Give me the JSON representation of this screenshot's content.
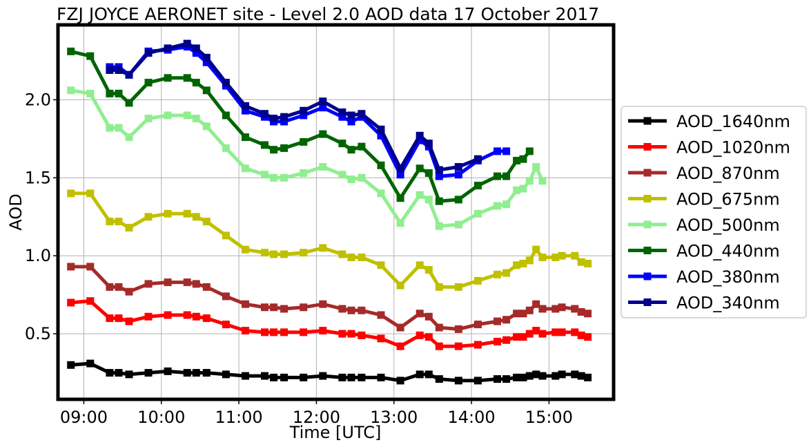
{
  "chart_data": {
    "type": "line",
    "title": "FZJ JOYCE AERONET site - Level 2.0 AOD data 17 October 2017",
    "xlabel": "Time [UTC]",
    "ylabel": "AOD",
    "xlim": [
      "08:40",
      "15:50"
    ],
    "ylim": [
      0.08,
      2.48
    ],
    "x_ticks": [
      "09:00",
      "10:00",
      "11:00",
      "12:00",
      "13:00",
      "14:00",
      "15:00"
    ],
    "y_ticks": [
      "0.5",
      "1.0",
      "1.5",
      "2.0"
    ],
    "grid": true,
    "legend_position": "right",
    "series": [
      {
        "name": "AOD_1640nm",
        "color": "#000000",
        "x": [
          "08:50",
          "09:05",
          "09:20",
          "09:27",
          "09:35",
          "09:50",
          "10:05",
          "10:20",
          "10:27",
          "10:35",
          "10:50",
          "11:05",
          "11:20",
          "11:27",
          "11:35",
          "11:50",
          "12:05",
          "12:20",
          "12:27",
          "12:35",
          "12:50",
          "13:05",
          "13:20",
          "13:27",
          "13:35",
          "13:50",
          "14:05",
          "14:20",
          "14:27",
          "14:35",
          "14:40",
          "14:45",
          "14:50",
          "14:55",
          "15:05",
          "15:10",
          "15:20",
          "15:25",
          "15:30"
        ],
        "y": [
          0.3,
          0.31,
          0.25,
          0.25,
          0.24,
          0.25,
          0.26,
          0.25,
          0.25,
          0.25,
          0.24,
          0.23,
          0.23,
          0.22,
          0.22,
          0.22,
          0.23,
          0.22,
          0.22,
          0.22,
          0.22,
          0.2,
          0.24,
          0.24,
          0.21,
          0.2,
          0.2,
          0.21,
          0.21,
          0.22,
          0.22,
          0.23,
          0.24,
          0.23,
          0.23,
          0.24,
          0.24,
          0.23,
          0.22
        ]
      },
      {
        "name": "AOD_1020nm",
        "color": "#ff0000",
        "x": [
          "08:50",
          "09:05",
          "09:20",
          "09:27",
          "09:35",
          "09:50",
          "10:05",
          "10:20",
          "10:27",
          "10:35",
          "10:50",
          "11:05",
          "11:20",
          "11:27",
          "11:35",
          "11:50",
          "12:05",
          "12:20",
          "12:27",
          "12:35",
          "12:50",
          "13:05",
          "13:20",
          "13:27",
          "13:35",
          "13:50",
          "14:05",
          "14:20",
          "14:27",
          "14:35",
          "14:40",
          "14:45",
          "14:50",
          "14:55",
          "15:05",
          "15:10",
          "15:20",
          "15:25",
          "15:30"
        ],
        "y": [
          0.7,
          0.71,
          0.6,
          0.6,
          0.58,
          0.61,
          0.62,
          0.62,
          0.61,
          0.6,
          0.56,
          0.52,
          0.51,
          0.51,
          0.51,
          0.51,
          0.52,
          0.5,
          0.5,
          0.49,
          0.47,
          0.42,
          0.49,
          0.48,
          0.42,
          0.42,
          0.43,
          0.45,
          0.46,
          0.48,
          0.48,
          0.5,
          0.52,
          0.5,
          0.51,
          0.51,
          0.51,
          0.49,
          0.48
        ]
      },
      {
        "name": "AOD_870nm",
        "color": "#a52a2a",
        "x": [
          "08:50",
          "09:05",
          "09:20",
          "09:27",
          "09:35",
          "09:50",
          "10:05",
          "10:20",
          "10:27",
          "10:35",
          "10:50",
          "11:05",
          "11:20",
          "11:27",
          "11:35",
          "11:50",
          "12:05",
          "12:20",
          "12:27",
          "12:35",
          "12:50",
          "13:05",
          "13:20",
          "13:27",
          "13:35",
          "13:50",
          "14:05",
          "14:20",
          "14:27",
          "14:35",
          "14:40",
          "14:45",
          "14:50",
          "14:55",
          "15:05",
          "15:10",
          "15:20",
          "15:25",
          "15:30"
        ],
        "y": [
          0.93,
          0.93,
          0.8,
          0.8,
          0.77,
          0.82,
          0.83,
          0.83,
          0.82,
          0.8,
          0.74,
          0.69,
          0.67,
          0.67,
          0.66,
          0.67,
          0.69,
          0.66,
          0.65,
          0.65,
          0.62,
          0.54,
          0.63,
          0.61,
          0.54,
          0.53,
          0.56,
          0.58,
          0.59,
          0.63,
          0.63,
          0.65,
          0.69,
          0.66,
          0.66,
          0.67,
          0.66,
          0.64,
          0.63
        ]
      },
      {
        "name": "AOD_675nm",
        "color": "#c0c000",
        "x": [
          "08:50",
          "09:05",
          "09:20",
          "09:27",
          "09:35",
          "09:50",
          "10:05",
          "10:20",
          "10:27",
          "10:35",
          "10:50",
          "11:05",
          "11:20",
          "11:27",
          "11:35",
          "11:50",
          "12:05",
          "12:20",
          "12:27",
          "12:35",
          "12:50",
          "13:05",
          "13:20",
          "13:27",
          "13:35",
          "13:50",
          "14:05",
          "14:20",
          "14:27",
          "14:35",
          "14:40",
          "14:45",
          "14:50",
          "14:55",
          "15:05",
          "15:10",
          "15:20",
          "15:25",
          "15:30"
        ],
        "y": [
          1.4,
          1.4,
          1.22,
          1.22,
          1.18,
          1.25,
          1.27,
          1.27,
          1.25,
          1.22,
          1.13,
          1.04,
          1.02,
          1.01,
          1.01,
          1.02,
          1.05,
          1.01,
          0.99,
          0.99,
          0.94,
          0.81,
          0.94,
          0.91,
          0.8,
          0.8,
          0.84,
          0.88,
          0.89,
          0.94,
          0.95,
          0.97,
          1.04,
          0.99,
          0.99,
          1.0,
          1.0,
          0.96,
          0.95
        ]
      },
      {
        "name": "AOD_500nm",
        "color": "#90ee90",
        "x": [
          "08:50",
          "09:05",
          "09:20",
          "09:27",
          "09:35",
          "09:50",
          "10:05",
          "10:20",
          "10:27",
          "10:35",
          "10:50",
          "11:05",
          "11:20",
          "11:27",
          "11:35",
          "11:50",
          "12:05",
          "12:20",
          "12:27",
          "12:35",
          "12:50",
          "13:05",
          "13:20",
          "13:27",
          "13:35",
          "13:50",
          "14:05",
          "14:20",
          "14:27",
          "14:35",
          "14:40",
          "14:45",
          "14:50",
          "14:55"
        ],
        "y": [
          2.06,
          2.04,
          1.82,
          1.82,
          1.76,
          1.88,
          1.9,
          1.9,
          1.88,
          1.83,
          1.69,
          1.56,
          1.52,
          1.5,
          1.5,
          1.53,
          1.57,
          1.52,
          1.49,
          1.5,
          1.4,
          1.21,
          1.39,
          1.36,
          1.19,
          1.2,
          1.27,
          1.32,
          1.33,
          1.42,
          1.43,
          1.48,
          1.57,
          1.48
        ]
      },
      {
        "name": "AOD_440nm",
        "color": "#006400",
        "x": [
          "08:50",
          "09:05",
          "09:20",
          "09:27",
          "09:35",
          "09:50",
          "10:05",
          "10:20",
          "10:27",
          "10:35",
          "10:50",
          "11:05",
          "11:20",
          "11:27",
          "11:35",
          "11:50",
          "12:05",
          "12:20",
          "12:27",
          "12:35",
          "12:50",
          "13:05",
          "13:20",
          "13:27",
          "13:35",
          "13:50",
          "14:05",
          "14:20",
          "14:27",
          "14:35",
          "14:40",
          "14:45"
        ],
        "y": [
          2.31,
          2.28,
          2.04,
          2.04,
          1.98,
          2.11,
          2.14,
          2.14,
          2.11,
          2.06,
          1.9,
          1.76,
          1.71,
          1.68,
          1.69,
          1.73,
          1.78,
          1.72,
          1.68,
          1.7,
          1.58,
          1.37,
          1.56,
          1.53,
          1.35,
          1.36,
          1.45,
          1.51,
          1.51,
          1.61,
          1.62,
          1.67
        ]
      },
      {
        "name": "AOD_380nm",
        "color": "#0000ff",
        "x": [
          "09:20",
          "09:27",
          "09:35",
          "09:50",
          "10:05",
          "10:20",
          "10:27",
          "10:35",
          "10:50",
          "11:05",
          "11:20",
          "11:27",
          "11:35",
          "11:50",
          "12:05",
          "12:20",
          "12:27",
          "12:35",
          "12:50",
          "13:05",
          "13:20",
          "13:27",
          "13:35",
          "13:50",
          "14:05",
          "14:20",
          "14:27"
        ],
        "y": [
          2.21,
          2.21,
          2.16,
          2.31,
          2.32,
          2.34,
          2.3,
          2.24,
          2.09,
          1.93,
          1.89,
          1.86,
          1.86,
          1.9,
          1.95,
          1.89,
          1.86,
          1.89,
          1.77,
          1.52,
          1.74,
          1.7,
          1.51,
          1.52,
          1.61,
          1.67,
          1.67
        ]
      },
      {
        "name": "AOD_340nm",
        "color": "#00008b",
        "x": [
          "09:20",
          "09:27",
          "09:35",
          "09:50",
          "10:05",
          "10:20",
          "10:27",
          "10:35",
          "10:50",
          "11:05",
          "11:20",
          "11:27",
          "11:35",
          "11:50",
          "12:05",
          "12:20",
          "12:27",
          "12:35",
          "12:50",
          "13:05",
          "13:20",
          "13:27",
          "13:35",
          "13:50",
          "14:05"
        ],
        "y": [
          2.19,
          2.19,
          2.16,
          2.3,
          2.33,
          2.36,
          2.33,
          2.27,
          2.11,
          1.96,
          1.91,
          1.88,
          1.89,
          1.93,
          1.99,
          1.92,
          1.9,
          1.91,
          1.81,
          1.56,
          1.77,
          1.72,
          1.55,
          1.57,
          1.62
        ]
      }
    ]
  }
}
